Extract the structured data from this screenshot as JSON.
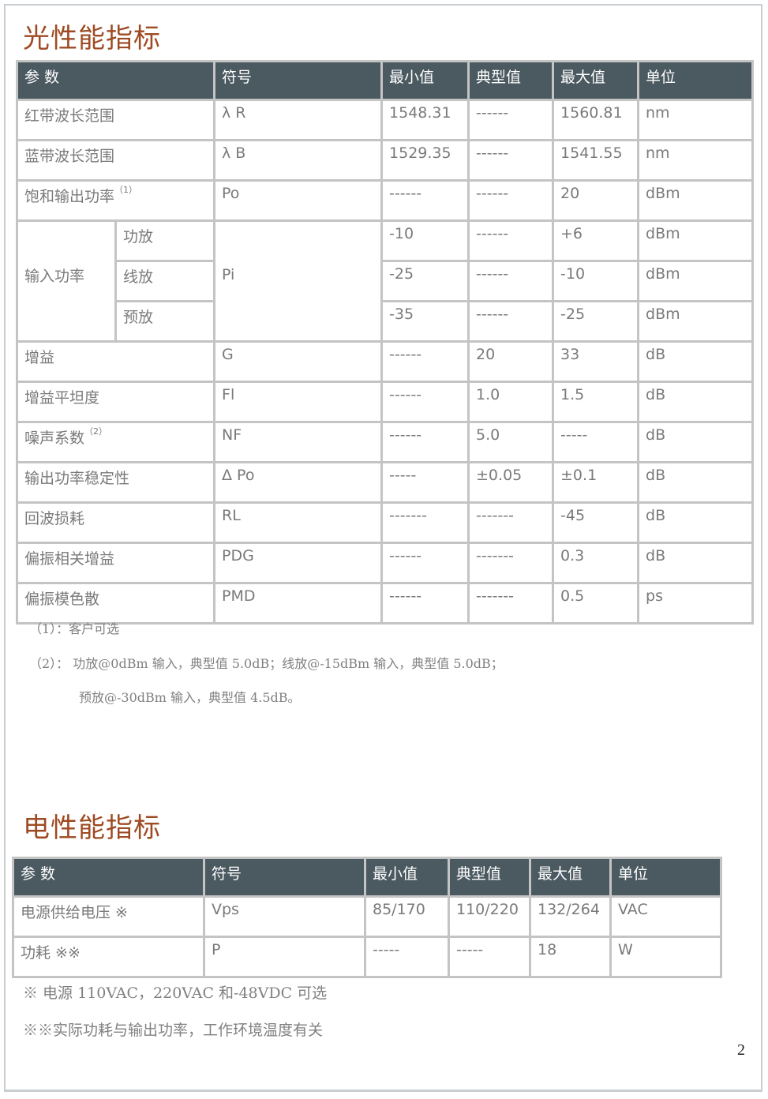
{
  "optical": {
    "title": "光性能指标",
    "headers": [
      "参 数",
      "符号",
      "最小值",
      "典型值",
      "最大值",
      "单位"
    ],
    "rows": [
      {
        "param": "红带波长范围",
        "sup": "",
        "symbol": "λ R",
        "min": "1548.31",
        "typ": "------",
        "max": "1560.81",
        "unit": "nm"
      },
      {
        "param": "蓝带波长范围",
        "sup": "",
        "symbol": "λ B",
        "min": "1529.35",
        "typ": "------",
        "max": "1541.55",
        "unit": "nm"
      },
      {
        "param": "饱和输出功率",
        "sup": "（1）",
        "symbol": "Po",
        "min": "------",
        "typ": "------",
        "max": "20",
        "unit": "dBm"
      }
    ],
    "input_power": {
      "param": "输入功率",
      "symbol": "Pi",
      "subrows": [
        {
          "sub": "功放",
          "min": "-10",
          "typ": "------",
          "max": "+6",
          "unit": "dBm"
        },
        {
          "sub": "线放",
          "min": "-25",
          "typ": "------",
          "max": "-10",
          "unit": "dBm"
        },
        {
          "sub": "预放",
          "min": "-35",
          "typ": "------",
          "max": "-25",
          "unit": "dBm"
        }
      ]
    },
    "rows2": [
      {
        "param": "增益",
        "sup": "",
        "symbol": "G",
        "min": "------",
        "typ": "20",
        "max": "33",
        "unit": "dB"
      },
      {
        "param": "增益平坦度",
        "sup": "",
        "symbol": "Fl",
        "min": "------",
        "typ": "1.0",
        "max": "1.5",
        "unit": "dB"
      },
      {
        "param": "噪声系数",
        "sup": "（2）",
        "symbol": "NF",
        "min": "------",
        "typ": "5.0",
        "max": "-----",
        "unit": "dB"
      },
      {
        "param": "输出功率稳定性",
        "sup": "",
        "symbol": "Δ Po",
        "min": "-----",
        "typ": "±0.05",
        "max": "±0.1",
        "unit": "dB"
      },
      {
        "param": "回波损耗",
        "sup": "",
        "symbol": "RL",
        "min": "-------",
        "typ": "-------",
        "max": "-45",
        "unit": "dB"
      },
      {
        "param": "偏振相关增益",
        "sup": "",
        "symbol": "PDG",
        "min": "------",
        "typ": "-------",
        "max": "0.3",
        "unit": "dB"
      },
      {
        "param": "偏振模色散",
        "sup": "",
        "symbol": "PMD",
        "min": "------",
        "typ": "-------",
        "max": "0.5",
        "unit": "ps"
      }
    ],
    "notes": [
      "（1）：客户可选",
      "（2）：  功放@0dBm 输入，典型值 5.0dB；线放@-15dBm 输入，典型值 5.0dB；",
      "预放@-30dBm 输入，典型值 4.5dB。"
    ]
  },
  "electrical": {
    "title": "电性能指标",
    "headers": [
      "参 数",
      "符号",
      "最小值",
      "典型值",
      "最大值",
      "单位"
    ],
    "rows": [
      {
        "param": "电源供给电压 ※",
        "symbol": "Vps",
        "min": "85/170",
        "typ": "110/220",
        "max": "132/264",
        "unit": "VAC"
      },
      {
        "param": "功耗 ※※",
        "symbol": "P",
        "min": "-----",
        "typ": "-----",
        "max": "18",
        "unit": "W"
      }
    ],
    "notes": [
      "※  电源 110VAC，220VAC 和-48VDC 可选",
      "※※实际功耗与输出功率，工作环境温度有关"
    ]
  },
  "page_number": "2"
}
